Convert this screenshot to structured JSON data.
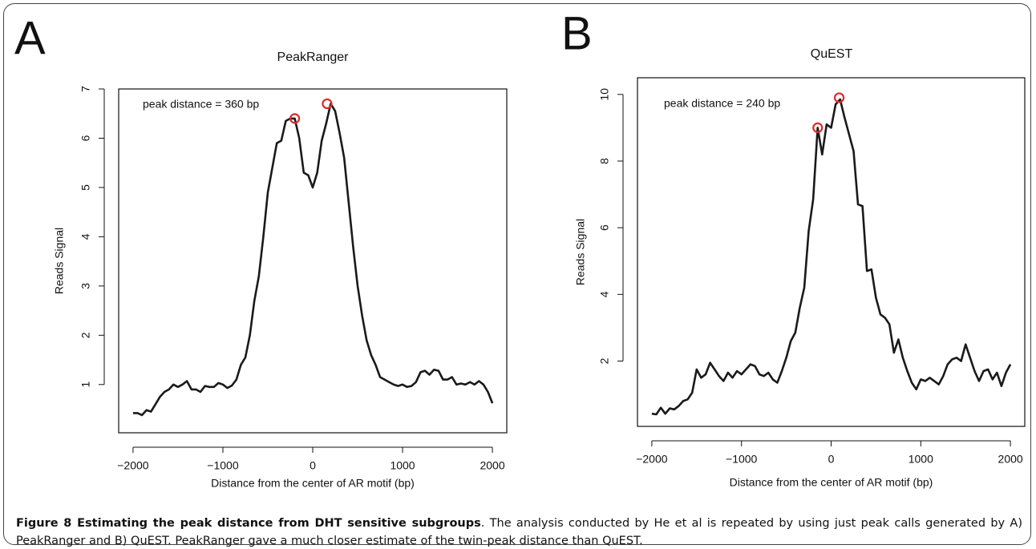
{
  "chart_data": [
    {
      "type": "line",
      "panel": "A",
      "title": "PeakRanger",
      "xlabel": "Distance from the center of AR motif (bp)",
      "ylabel": "Reads Signal",
      "annotation": "peak distance = 360 bp",
      "x": [
        -2000,
        -1950,
        -1900,
        -1850,
        -1800,
        -1750,
        -1700,
        -1650,
        -1600,
        -1550,
        -1500,
        -1450,
        -1400,
        -1350,
        -1300,
        -1250,
        -1200,
        -1150,
        -1100,
        -1050,
        -1000,
        -950,
        -900,
        -850,
        -800,
        -750,
        -700,
        -650,
        -600,
        -550,
        -500,
        -450,
        -400,
        -350,
        -300,
        -250,
        -200,
        -150,
        -100,
        -50,
        0,
        50,
        100,
        150,
        200,
        250,
        300,
        350,
        400,
        450,
        500,
        550,
        600,
        650,
        700,
        750,
        800,
        850,
        900,
        950,
        1000,
        1050,
        1100,
        1150,
        1200,
        1250,
        1300,
        1350,
        1400,
        1450,
        1500,
        1550,
        1600,
        1650,
        1700,
        1750,
        1800,
        1850,
        1900,
        1950,
        2000
      ],
      "series": [
        {
          "color": "#1a1a1a",
          "values": [
            0.42,
            0.42,
            0.38,
            0.48,
            0.45,
            0.6,
            0.75,
            0.85,
            0.9,
            1.0,
            0.95,
            1.0,
            1.07,
            0.9,
            0.9,
            0.85,
            0.97,
            0.95,
            0.95,
            1.03,
            1.0,
            0.93,
            0.98,
            1.1,
            1.4,
            1.55,
            2.0,
            2.7,
            3.2,
            4.0,
            4.9,
            5.4,
            5.9,
            5.95,
            6.35,
            6.4,
            6.4,
            6.0,
            5.3,
            5.25,
            5.0,
            5.3,
            5.95,
            6.3,
            6.7,
            6.55,
            6.1,
            5.6,
            4.7,
            3.8,
            3.0,
            2.4,
            1.9,
            1.6,
            1.4,
            1.15,
            1.1,
            1.05,
            1.0,
            0.97,
            1.0,
            0.95,
            0.97,
            1.05,
            1.25,
            1.28,
            1.2,
            1.3,
            1.28,
            1.1,
            1.1,
            1.15,
            1.0,
            1.02,
            1.0,
            1.05,
            1.0,
            1.07,
            1.0,
            0.85,
            0.62
          ]
        }
      ],
      "peaks": {
        "color": "#e02a2a",
        "x": [
          -200,
          160
        ],
        "values": [
          6.4,
          6.7
        ]
      },
      "xlim": [
        -2160,
        2160
      ],
      "ylim": [
        0.02,
        7.0
      ],
      "xticks": [
        {
          "value": -2000,
          "label": "−2000"
        },
        {
          "value": -1000,
          "label": "−1000"
        },
        0,
        1000,
        2000
      ],
      "yticks": [
        1,
        2,
        3,
        4,
        5,
        6,
        7
      ]
    },
    {
      "type": "line",
      "panel": "B",
      "title": "QuEST",
      "xlabel": "Distance from the center of AR motif (bp)",
      "ylabel": "Reads Signal",
      "annotation": "peak distance = 240 bp",
      "x": [
        -2000,
        -1950,
        -1900,
        -1850,
        -1800,
        -1750,
        -1700,
        -1650,
        -1600,
        -1550,
        -1500,
        -1450,
        -1400,
        -1350,
        -1300,
        -1250,
        -1200,
        -1150,
        -1100,
        -1050,
        -1000,
        -950,
        -900,
        -850,
        -800,
        -750,
        -700,
        -650,
        -600,
        -550,
        -500,
        -450,
        -400,
        -350,
        -300,
        -250,
        -200,
        -150,
        -100,
        -50,
        0,
        50,
        100,
        150,
        200,
        250,
        300,
        350,
        400,
        450,
        500,
        550,
        600,
        650,
        700,
        750,
        800,
        850,
        900,
        950,
        1000,
        1050,
        1100,
        1150,
        1200,
        1250,
        1300,
        1350,
        1400,
        1450,
        1500,
        1550,
        1600,
        1650,
        1700,
        1750,
        1800,
        1850,
        1900,
        1950,
        2000
      ],
      "series": [
        {
          "color": "#1a1a1a",
          "values": [
            0.42,
            0.4,
            0.6,
            0.42,
            0.58,
            0.55,
            0.65,
            0.8,
            0.85,
            1.05,
            1.75,
            1.5,
            1.6,
            1.95,
            1.75,
            1.55,
            1.4,
            1.65,
            1.5,
            1.7,
            1.6,
            1.75,
            1.9,
            1.85,
            1.6,
            1.55,
            1.65,
            1.45,
            1.35,
            1.7,
            2.1,
            2.6,
            2.85,
            3.6,
            4.2,
            5.9,
            6.85,
            9.0,
            8.2,
            9.1,
            9.0,
            9.7,
            9.85,
            9.3,
            8.8,
            8.3,
            6.7,
            6.65,
            4.7,
            4.75,
            3.9,
            3.4,
            3.3,
            3.1,
            2.25,
            2.65,
            2.1,
            1.7,
            1.35,
            1.15,
            1.45,
            1.4,
            1.5,
            1.4,
            1.3,
            1.55,
            1.9,
            2.05,
            2.1,
            2.0,
            2.5,
            2.1,
            1.7,
            1.4,
            1.7,
            1.75,
            1.45,
            1.65,
            1.25,
            1.65,
            1.9
          ]
        }
      ],
      "peaks": {
        "color": "#e02a2a",
        "x": [
          -150,
          90
        ],
        "values": [
          9.0,
          9.9
        ]
      },
      "xlim": [
        -2160,
        2160
      ],
      "ylim": [
        0.04,
        10.5
      ],
      "xticks": [
        {
          "value": -2000,
          "label": "−2000"
        },
        {
          "value": -1000,
          "label": "−1000"
        },
        0,
        1000,
        2000
      ],
      "yticks": [
        2,
        4,
        6,
        8,
        10
      ]
    }
  ],
  "caption": {
    "title": "Figure 8 Estimating the peak distance from DHT sensitive subgroups",
    "text": ". The analysis conducted by He et al is repeated by using just peak calls generated by A) PeakRanger and B) QuEST. PeakRanger gave a much closer estimate of the twin-peak distance than QuEST."
  }
}
